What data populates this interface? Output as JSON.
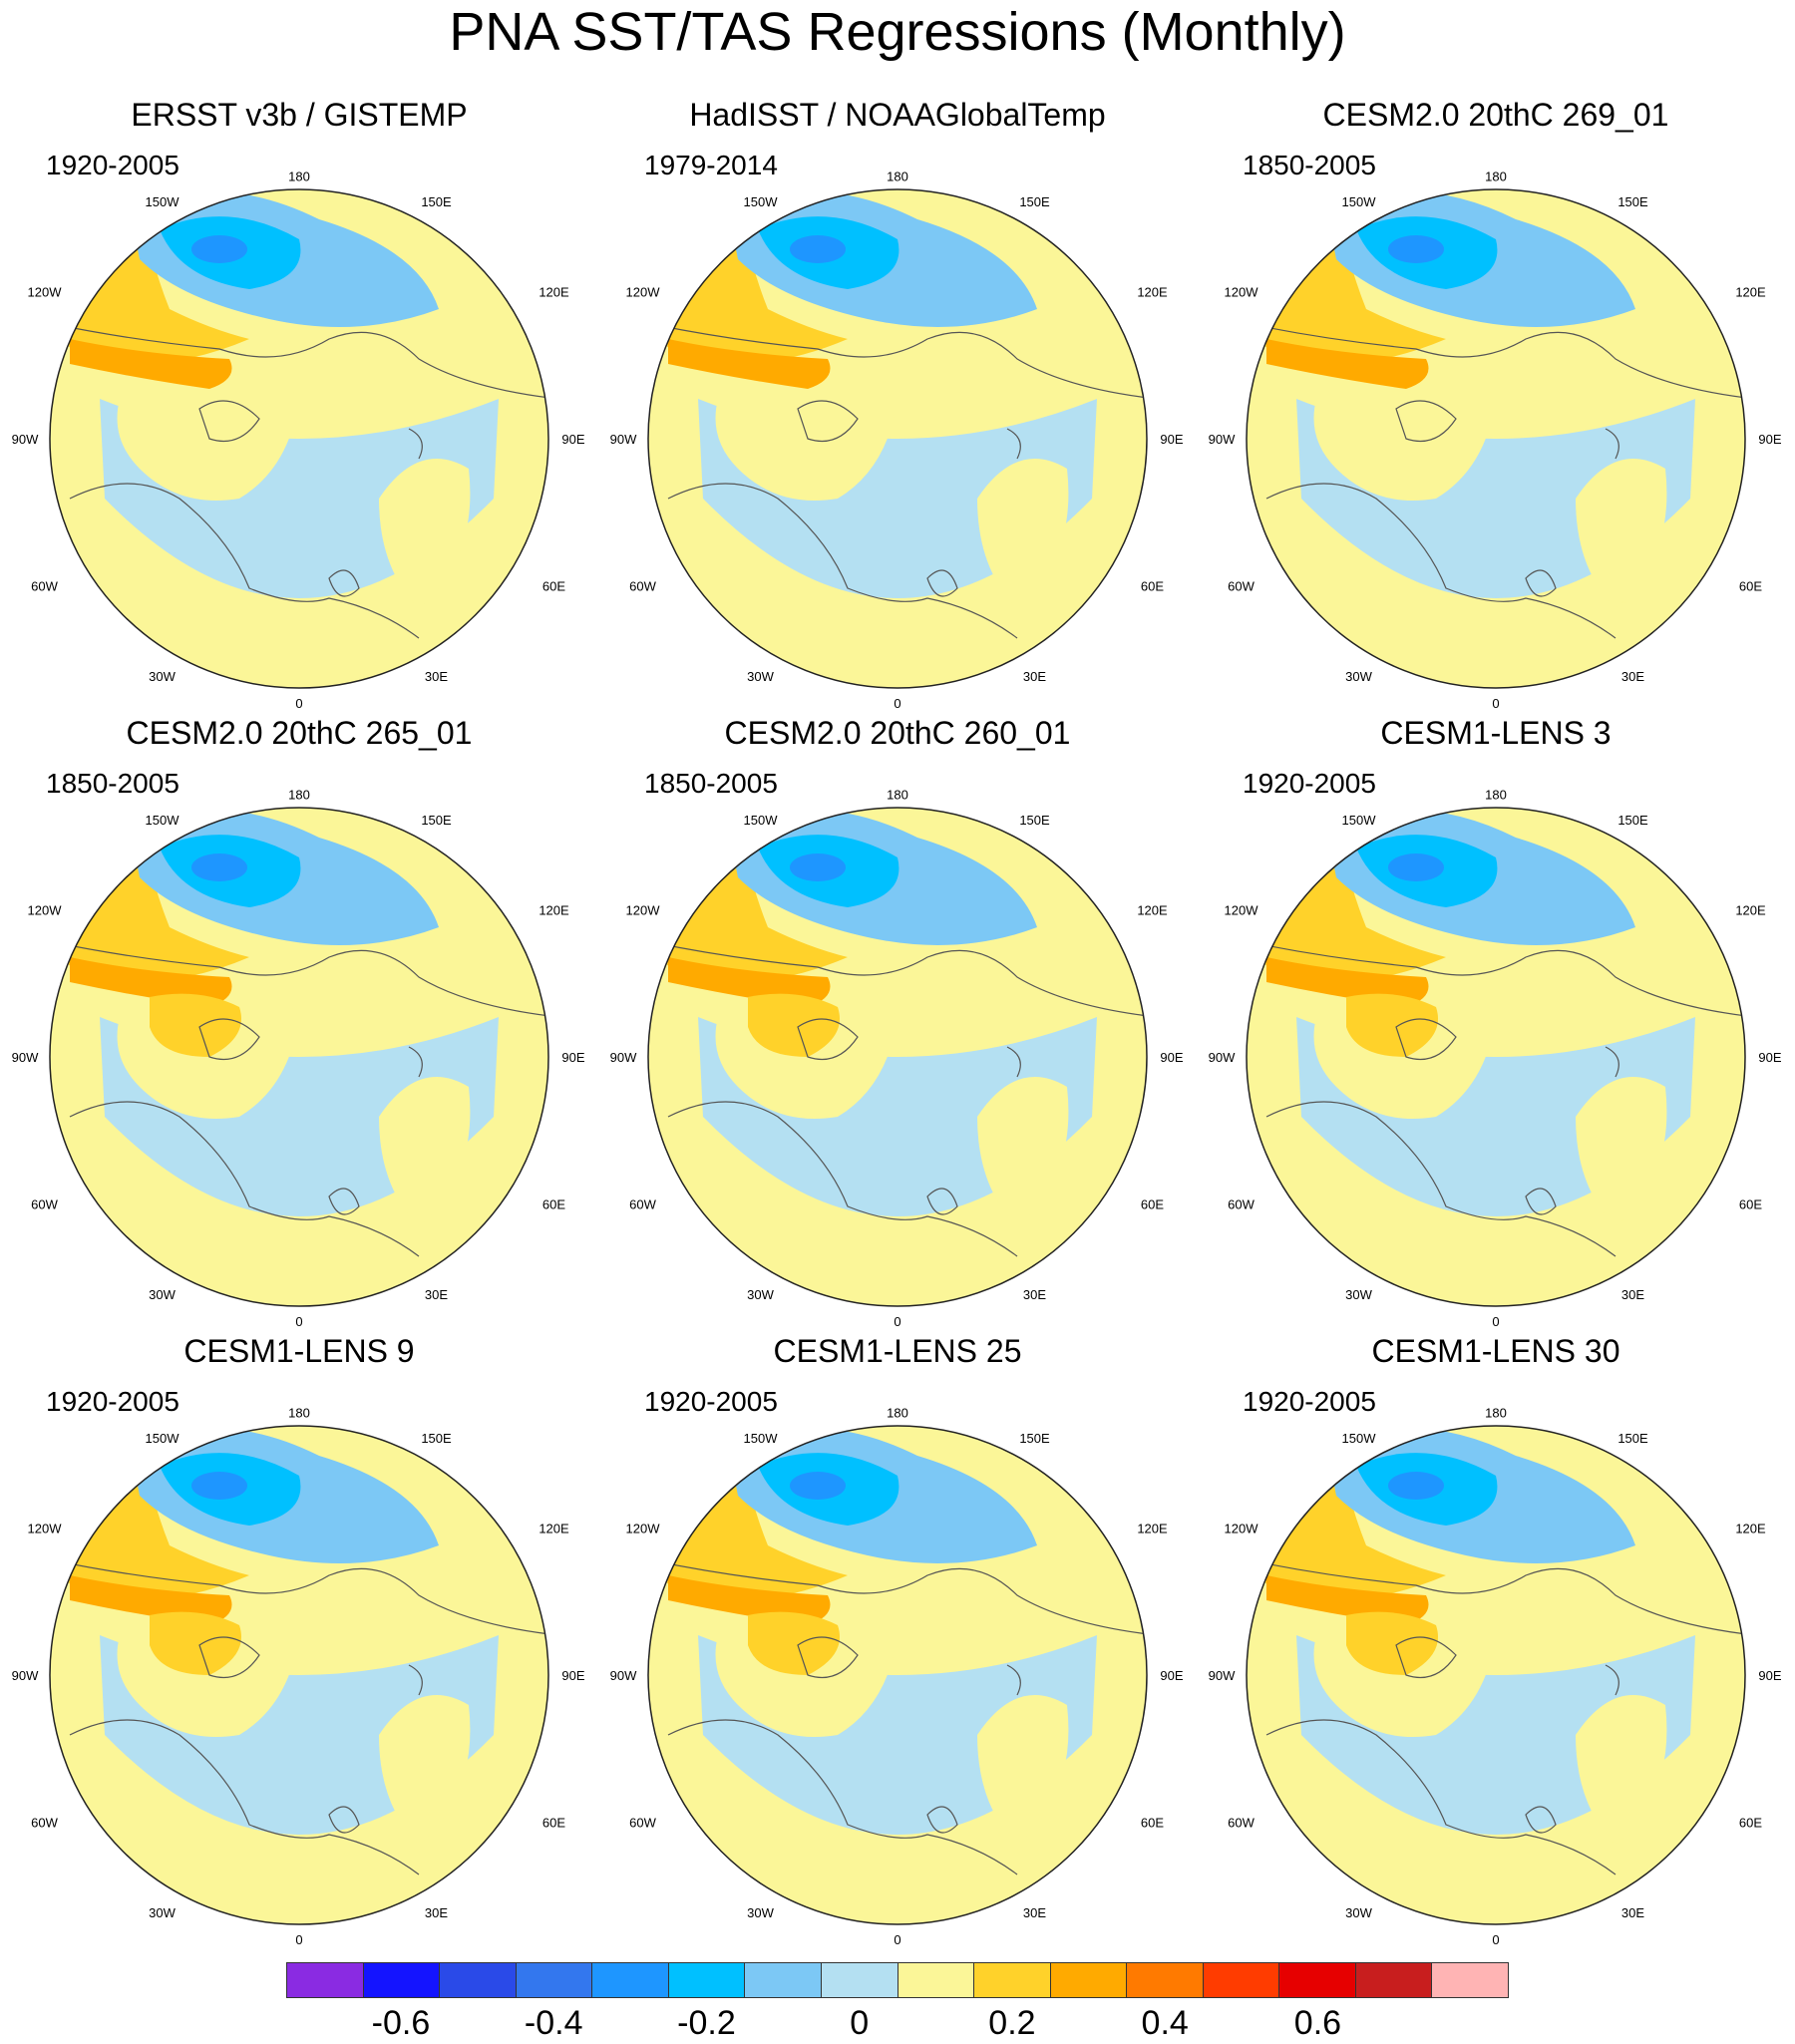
{
  "title": "PNA SST/TAS Regressions (Monthly)",
  "map_labels": {
    "lon_180": "180",
    "lon_150e": "150E",
    "lon_120e": "120E",
    "lon_90e": "90E",
    "lon_60e": "60E",
    "lon_30e": "30E",
    "lon_0": "0",
    "lon_30w": "30W",
    "lon_60w": "60W",
    "lon_90w": "90W",
    "lon_120w": "120W",
    "lon_150w": "150W"
  },
  "panels": [
    {
      "title": "ERSST v3b / GISTEMP",
      "period": "1920-2005"
    },
    {
      "title": "HadISST / NOAAGlobalTemp",
      "period": "1979-2014"
    },
    {
      "title": "CESM2.0 20thC 269_01",
      "period": "1850-2005"
    },
    {
      "title": "CESM2.0 20thC 265_01",
      "period": "1850-2005"
    },
    {
      "title": "CESM2.0 20thC 260_01",
      "period": "1850-2005"
    },
    {
      "title": "CESM1-LENS 3",
      "period": "1920-2005"
    },
    {
      "title": "CESM1-LENS 9",
      "period": "1920-2005"
    },
    {
      "title": "CESM1-LENS 25",
      "period": "1920-2005"
    },
    {
      "title": "CESM1-LENS 30",
      "period": "1920-2005"
    }
  ],
  "colorbar": {
    "colors": [
      "#8a2be2",
      "#1414ff",
      "#2a4ae8",
      "#3377ee",
      "#1e96ff",
      "#00c0ff",
      "#7cc8f5",
      "#b4e0f2",
      "#fbf698",
      "#ffd22a",
      "#ffaa00",
      "#ff7a00",
      "#ff3c00",
      "#e60000",
      "#c81e1e",
      "#ffb4b4"
    ],
    "tick_labels": [
      "-0.6",
      "-0.4",
      "-0.2",
      "0",
      "0.2",
      "0.4",
      "0.6"
    ]
  },
  "map_colors": {
    "ocean_neutral": "#b4e0f2",
    "positive_weak": "#fbf698",
    "positive_mod": "#ffd22a",
    "positive_strong": "#ffaa00",
    "negative_mod": "#7cc8f5",
    "negative_strong": "#00c0ff",
    "negative_core": "#1e96ff",
    "coast": "#555555",
    "missing": "#ffffff"
  }
}
